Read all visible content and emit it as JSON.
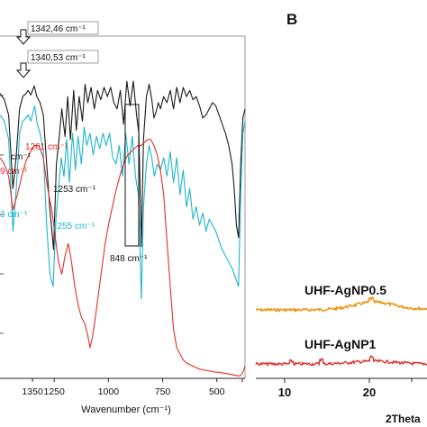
{
  "chart_data": [
    {
      "type": "line",
      "panel": "A",
      "xlabel": "Wavenumber (cm⁻¹)",
      "xlim": [
        1500,
        370
      ],
      "x_reversed": true,
      "x_ticks": [
        "1250",
        "1000",
        "750",
        "500"
      ],
      "partial_ticks": [
        "1350"
      ],
      "series": [
        {
          "color": "#1a1a1a",
          "x": [
            1500,
            1480,
            1460,
            1440,
            1425,
            1410,
            1395,
            1380,
            1370,
            1358,
            1342,
            1330,
            1315,
            1300,
            1285,
            1270,
            1253,
            1240,
            1228,
            1215,
            1200,
            1188,
            1175,
            1160,
            1148,
            1135,
            1120,
            1108,
            1095,
            1080,
            1065,
            1050,
            1035,
            1020,
            1005,
            990,
            975,
            960,
            945,
            930,
            915,
            900,
            885,
            870,
            860,
            848,
            838,
            825,
            812,
            800,
            790,
            780,
            770,
            760,
            745,
            730,
            715,
            700,
            685,
            670,
            655,
            640,
            625,
            610,
            595,
            580,
            565,
            550,
            535,
            520,
            505,
            490,
            475,
            460,
            445,
            430,
            420,
            410,
            400,
            390,
            380,
            370
          ],
          "y": [
            0.93,
            0.91,
            0.86,
            0.62,
            0.73,
            0.88,
            0.92,
            0.93,
            0.94,
            0.925,
            0.955,
            0.92,
            0.9,
            0.86,
            0.7,
            0.55,
            0.42,
            0.7,
            0.78,
            0.88,
            0.79,
            0.92,
            0.78,
            0.94,
            0.81,
            0.92,
            0.84,
            0.96,
            0.9,
            0.95,
            0.88,
            0.94,
            0.91,
            0.95,
            0.92,
            0.95,
            0.9,
            0.88,
            0.94,
            0.83,
            0.97,
            0.89,
            0.97,
            0.86,
            0.8,
            0.43,
            0.78,
            0.92,
            0.96,
            0.91,
            0.85,
            0.87,
            0.9,
            0.88,
            0.92,
            0.9,
            0.94,
            0.88,
            0.95,
            0.9,
            0.95,
            0.92,
            0.94,
            0.91,
            0.92,
            0.89,
            0.85,
            0.86,
            0.88,
            0.9,
            0.89,
            0.86,
            0.83,
            0.8,
            0.76,
            0.7,
            0.62,
            0.5,
            0.46,
            0.7,
            0.85,
            0.88
          ]
        },
        {
          "color": "#1fb6cf",
          "x": [
            1500,
            1480,
            1460,
            1440,
            1425,
            1410,
            1395,
            1380,
            1370,
            1358,
            1340,
            1328,
            1315,
            1300,
            1285,
            1270,
            1255,
            1242,
            1230,
            1218,
            1205,
            1192,
            1180,
            1165,
            1152,
            1140,
            1125,
            1112,
            1100,
            1085,
            1070,
            1055,
            1040,
            1025,
            1010,
            995,
            980,
            965,
            950,
            935,
            920,
            905,
            890,
            875,
            862,
            848,
            838,
            825,
            812,
            800,
            788,
            775,
            760,
            745,
            730,
            715,
            700,
            685,
            670,
            655,
            640,
            625,
            610,
            595,
            580,
            565,
            550,
            535,
            520,
            505,
            490,
            475,
            460,
            445,
            430,
            420,
            410,
            400,
            390,
            380,
            370
          ],
          "y": [
            0.86,
            0.84,
            0.78,
            0.48,
            0.62,
            0.8,
            0.84,
            0.85,
            0.86,
            0.84,
            0.89,
            0.83,
            0.8,
            0.74,
            0.5,
            0.34,
            0.3,
            0.52,
            0.62,
            0.72,
            0.66,
            0.78,
            0.64,
            0.8,
            0.68,
            0.79,
            0.7,
            0.82,
            0.76,
            0.8,
            0.73,
            0.79,
            0.75,
            0.8,
            0.76,
            0.8,
            0.72,
            0.7,
            0.76,
            0.66,
            0.8,
            0.7,
            0.79,
            0.66,
            0.6,
            0.26,
            0.56,
            0.7,
            0.76,
            0.72,
            0.66,
            0.7,
            0.68,
            0.72,
            0.66,
            0.74,
            0.64,
            0.72,
            0.6,
            0.68,
            0.56,
            0.62,
            0.52,
            0.56,
            0.5,
            0.54,
            0.48,
            0.52,
            0.5,
            0.48,
            0.45,
            0.42,
            0.4,
            0.38,
            0.36,
            0.34,
            0.32,
            0.3,
            0.6,
            0.8,
            0.84
          ]
        },
        {
          "color": "#e0302b",
          "x": [
            1500,
            1480,
            1460,
            1440,
            1420,
            1400,
            1380,
            1360,
            1340,
            1320,
            1300,
            1285,
            1270,
            1261,
            1245,
            1230,
            1215,
            1200,
            1185,
            1170,
            1155,
            1140,
            1125,
            1110,
            1095,
            1085,
            1072,
            1060,
            1045,
            1030,
            1015,
            1000,
            985,
            970,
            955,
            940,
            925,
            910,
            895,
            880,
            865,
            850,
            835,
            820,
            805,
            790,
            775,
            760,
            745,
            730,
            715,
            700,
            685,
            670,
            655,
            640,
            625,
            610,
            595,
            580,
            565,
            550,
            535,
            520,
            505,
            490,
            475,
            460,
            445,
            430,
            415,
            400,
            390,
            380,
            370
          ],
          "y": [
            0.72,
            0.7,
            0.66,
            0.55,
            0.6,
            0.66,
            0.71,
            0.74,
            0.76,
            0.76,
            0.72,
            0.64,
            0.58,
            0.55,
            0.46,
            0.38,
            0.34,
            0.4,
            0.44,
            0.38,
            0.3,
            0.24,
            0.2,
            0.18,
            0.14,
            0.1,
            0.14,
            0.2,
            0.28,
            0.36,
            0.44,
            0.5,
            0.55,
            0.6,
            0.64,
            0.68,
            0.71,
            0.73,
            0.74,
            0.75,
            0.76,
            0.76,
            0.77,
            0.78,
            0.78,
            0.76,
            0.73,
            0.68,
            0.6,
            0.45,
            0.3,
            0.16,
            0.1,
            0.08,
            0.06,
            0.05,
            0.045,
            0.04,
            0.035,
            0.03,
            0.028,
            0.026,
            0.024,
            0.022,
            0.02,
            0.02,
            0.018,
            0.016,
            0.014,
            0.012,
            0.01,
            0.008,
            0.01,
            0.02,
            0.04
          ]
        }
      ],
      "annotations": [
        {
          "text": "1342,46 cm⁻¹",
          "color": "#111111",
          "boxed": true
        },
        {
          "text": "1340,53 cm⁻¹",
          "color": "#111111",
          "boxed": true
        },
        {
          "text": "1261 cm⁻¹",
          "color": "#e0302b"
        },
        {
          "text": "9 cm⁻¹",
          "color": "#e0302b"
        },
        {
          "text": "cm⁻¹",
          "color": "#111111"
        },
        {
          "text": "1253 cm⁻¹",
          "color": "#111111"
        },
        {
          "text": "3 cm⁻¹",
          "color": "#1fb6cf"
        },
        {
          "text": "1255 cm⁻¹",
          "color": "#1fb6cf"
        },
        {
          "text": "848 cm⁻¹",
          "color": "#111111"
        }
      ]
    },
    {
      "type": "line",
      "panel": "B",
      "xlabel_partial": "2Theta",
      "x_ticks": [
        "10",
        "20"
      ],
      "series": [
        {
          "name": "UHF-AgNP0.5",
          "color": "#f08c00"
        },
        {
          "name": "UHF-AgNP1",
          "color": "#e0302b"
        }
      ]
    }
  ],
  "panel_a_label_visible": false,
  "panel_b_label": "B"
}
